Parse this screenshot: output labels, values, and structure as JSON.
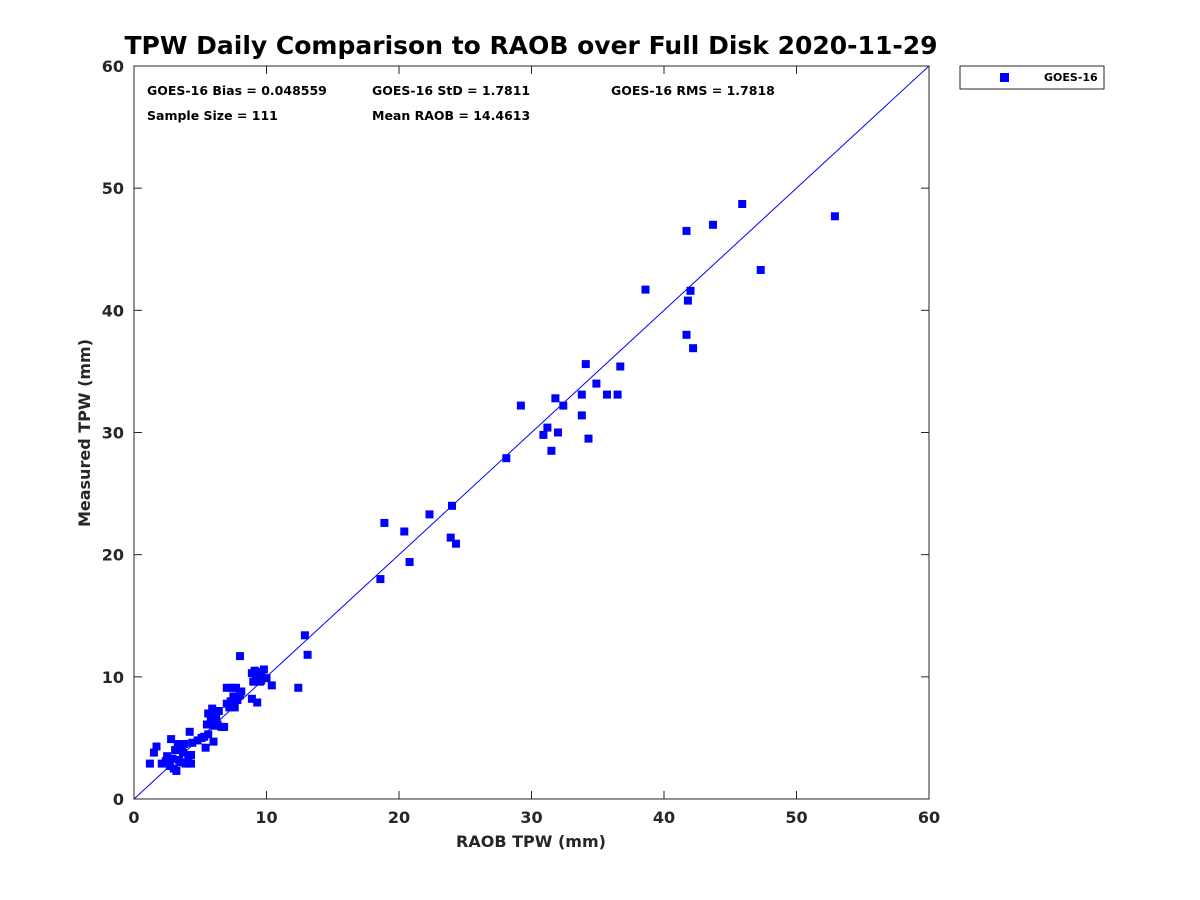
{
  "chart_data": {
    "type": "scatter",
    "title": "TPW Daily Comparison to RAOB over Full Disk 2020-11-29",
    "xlabel": "RAOB TPW (mm)",
    "ylabel": "Measured TPW (mm)",
    "xlim": [
      0,
      60
    ],
    "ylim": [
      0,
      60
    ],
    "xticks": [
      0,
      10,
      20,
      30,
      40,
      50,
      60
    ],
    "yticks": [
      0,
      10,
      20,
      30,
      40,
      50,
      60
    ],
    "xtick_labels": [
      "0",
      "10",
      "20",
      "30",
      "40",
      "50",
      "60"
    ],
    "ytick_labels": [
      "0",
      "10",
      "20",
      "30",
      "40",
      "50",
      "60"
    ],
    "grid": false,
    "legend": {
      "placement": "outside-top-right",
      "entries": [
        "GOES-16"
      ]
    },
    "reference_line": {
      "name": "one-to-one",
      "x": [
        0,
        60
      ],
      "y": [
        0,
        60
      ],
      "color": "#0000ff"
    },
    "annotations": {
      "bias": "GOES-16 Bias = 0.048559",
      "std": "GOES-16 StD = 1.7811",
      "rms": "GOES-16 RMS = 1.7818",
      "sample_size": "Sample Size = 111",
      "mean_raob": "Mean RAOB = 14.4613"
    },
    "series": [
      {
        "name": "GOES-16",
        "color": "#0000ff",
        "marker": "square",
        "points": [
          [
            1.2,
            2.9
          ],
          [
            1.5,
            3.8
          ],
          [
            1.7,
            4.3
          ],
          [
            2.1,
            2.9
          ],
          [
            2.4,
            3.1
          ],
          [
            2.5,
            3.5
          ],
          [
            2.7,
            2.7
          ],
          [
            2.8,
            4.9
          ],
          [
            2.9,
            3.3
          ],
          [
            3.0,
            2.5
          ],
          [
            3.1,
            4.0
          ],
          [
            3.2,
            2.3
          ],
          [
            3.3,
            4.5
          ],
          [
            3.4,
            3.2
          ],
          [
            3.5,
            3.0
          ],
          [
            3.6,
            4.2
          ],
          [
            3.7,
            3.8
          ],
          [
            3.8,
            4.5
          ],
          [
            3.9,
            2.9
          ],
          [
            4.1,
            3.3
          ],
          [
            4.2,
            5.5
          ],
          [
            4.3,
            2.9
          ],
          [
            4.3,
            3.6
          ],
          [
            4.4,
            4.6
          ],
          [
            4.8,
            4.8
          ],
          [
            5.1,
            5.0
          ],
          [
            5.3,
            5.1
          ],
          [
            5.4,
            4.2
          ],
          [
            5.5,
            6.1
          ],
          [
            5.6,
            5.3
          ],
          [
            5.6,
            7.0
          ],
          [
            5.8,
            6.7
          ],
          [
            5.9,
            7.4
          ],
          [
            6.0,
            4.7
          ],
          [
            6.0,
            6.0
          ],
          [
            6.1,
            6.4
          ],
          [
            6.2,
            6.8
          ],
          [
            6.3,
            6.1
          ],
          [
            6.4,
            7.2
          ],
          [
            6.6,
            5.9
          ],
          [
            6.8,
            5.9
          ],
          [
            7.0,
            7.8
          ],
          [
            7.0,
            9.1
          ],
          [
            7.2,
            7.5
          ],
          [
            7.3,
            8.0
          ],
          [
            7.4,
            9.1
          ],
          [
            7.5,
            8.4
          ],
          [
            7.6,
            7.5
          ],
          [
            7.7,
            9.1
          ],
          [
            7.8,
            8.1
          ],
          [
            8.0,
            8.5
          ],
          [
            8.0,
            11.7
          ],
          [
            8.1,
            8.8
          ],
          [
            8.9,
            10.3
          ],
          [
            8.9,
            8.2
          ],
          [
            9.0,
            9.6
          ],
          [
            9.1,
            10.5
          ],
          [
            9.2,
            9.9
          ],
          [
            9.3,
            7.9
          ],
          [
            9.3,
            10.4
          ],
          [
            9.5,
            9.6
          ],
          [
            9.6,
            10.1
          ],
          [
            9.6,
            9.7
          ],
          [
            9.8,
            10.6
          ],
          [
            10.0,
            9.9
          ],
          [
            10.4,
            9.3
          ],
          [
            12.4,
            9.1
          ],
          [
            12.9,
            13.4
          ],
          [
            13.1,
            11.8
          ],
          [
            18.6,
            18.0
          ],
          [
            18.9,
            22.6
          ],
          [
            20.4,
            21.9
          ],
          [
            20.8,
            19.4
          ],
          [
            22.3,
            23.3
          ],
          [
            23.9,
            21.4
          ],
          [
            24.0,
            24.0
          ],
          [
            24.3,
            20.9
          ],
          [
            28.1,
            27.9
          ],
          [
            29.2,
            32.2
          ],
          [
            30.9,
            29.8
          ],
          [
            31.2,
            30.4
          ],
          [
            31.5,
            28.5
          ],
          [
            31.8,
            32.8
          ],
          [
            32.0,
            30.0
          ],
          [
            32.4,
            32.2
          ],
          [
            33.8,
            33.1
          ],
          [
            33.8,
            31.4
          ],
          [
            34.1,
            35.6
          ],
          [
            34.3,
            29.5
          ],
          [
            34.9,
            34.0
          ],
          [
            35.7,
            33.1
          ],
          [
            36.5,
            33.1
          ],
          [
            36.7,
            35.4
          ],
          [
            38.6,
            41.7
          ],
          [
            41.7,
            46.5
          ],
          [
            41.7,
            38.0
          ],
          [
            41.8,
            40.8
          ],
          [
            42.0,
            41.6
          ],
          [
            42.2,
            36.9
          ],
          [
            43.7,
            47.0
          ],
          [
            45.9,
            48.7
          ],
          [
            47.3,
            43.3
          ],
          [
            52.9,
            47.7
          ]
        ]
      }
    ]
  }
}
